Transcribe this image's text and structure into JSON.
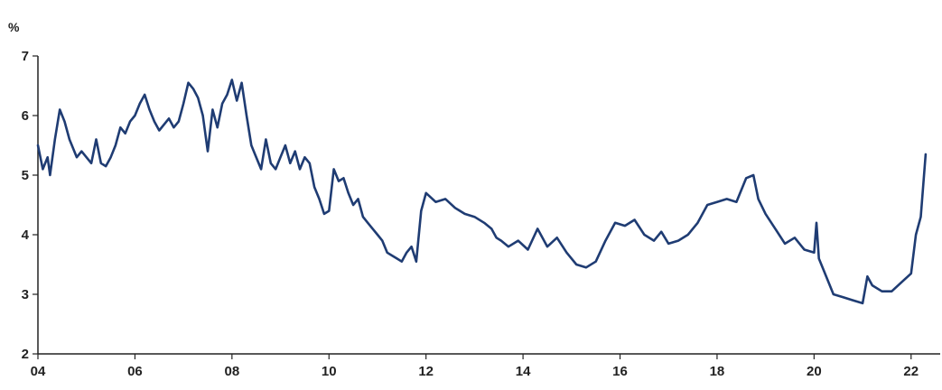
{
  "chart_data": {
    "type": "line",
    "unit_label": "%",
    "line_color": "#1f3c73",
    "x_range": [
      2004,
      2022.6
    ],
    "ylim": [
      2,
      7
    ],
    "grid": false,
    "x_ticks": [
      {
        "value": 2004,
        "label": "04"
      },
      {
        "value": 2006,
        "label": "06"
      },
      {
        "value": 2008,
        "label": "08"
      },
      {
        "value": 2010,
        "label": "10"
      },
      {
        "value": 2012,
        "label": "12"
      },
      {
        "value": 2014,
        "label": "14"
      },
      {
        "value": 2016,
        "label": "16"
      },
      {
        "value": 2018,
        "label": "18"
      },
      {
        "value": 2020,
        "label": "20"
      },
      {
        "value": 2022,
        "label": "22"
      }
    ],
    "y_ticks": [
      {
        "value": 2,
        "label": "2"
      },
      {
        "value": 3,
        "label": "3"
      },
      {
        "value": 4,
        "label": "4"
      },
      {
        "value": 5,
        "label": "5"
      },
      {
        "value": 6,
        "label": "6"
      },
      {
        "value": 7,
        "label": "7"
      }
    ],
    "series": [
      {
        "x": [
          2004.0,
          2004.1,
          2004.2,
          2004.25,
          2004.35,
          2004.45,
          2004.55,
          2004.65,
          2004.8,
          2004.9,
          2005.0,
          2005.1,
          2005.2,
          2005.3,
          2005.4,
          2005.5,
          2005.6,
          2005.7,
          2005.8,
          2005.9,
          2006.0,
          2006.1,
          2006.2,
          2006.3,
          2006.4,
          2006.5,
          2006.6,
          2006.7,
          2006.8,
          2006.9,
          2007.0,
          2007.1,
          2007.2,
          2007.3,
          2007.4,
          2007.5,
          2007.6,
          2007.7,
          2007.8,
          2007.9,
          2008.0,
          2008.1,
          2008.2,
          2008.3,
          2008.4,
          2008.5,
          2008.6,
          2008.7,
          2008.8,
          2008.9,
          2009.0,
          2009.1,
          2009.2,
          2009.3,
          2009.4,
          2009.5,
          2009.6,
          2009.7,
          2009.8,
          2009.9,
          2010.0,
          2010.1,
          2010.2,
          2010.3,
          2010.4,
          2010.5,
          2010.6,
          2010.7,
          2010.8,
          2010.9,
          2011.0,
          2011.1,
          2011.2,
          2011.3,
          2011.4,
          2011.5,
          2011.6,
          2011.7,
          2011.8,
          2011.9,
          2012.0,
          2012.2,
          2012.4,
          2012.6,
          2012.8,
          2013.0,
          2013.2,
          2013.35,
          2013.45,
          2013.55,
          2013.7,
          2013.9,
          2014.1,
          2014.3,
          2014.5,
          2014.7,
          2014.9,
          2015.1,
          2015.3,
          2015.5,
          2015.7,
          2015.9,
          2016.1,
          2016.3,
          2016.5,
          2016.7,
          2016.85,
          2017.0,
          2017.2,
          2017.4,
          2017.6,
          2017.8,
          2018.0,
          2018.2,
          2018.4,
          2018.6,
          2018.75,
          2018.85,
          2019.0,
          2019.2,
          2019.4,
          2019.6,
          2019.8,
          2020.0,
          2020.05,
          2020.1,
          2020.2,
          2020.4,
          2020.6,
          2020.8,
          2021.0,
          2021.1,
          2021.2,
          2021.4,
          2021.6,
          2021.8,
          2022.0,
          2022.1,
          2022.2,
          2022.3
        ],
        "y": [
          5.5,
          5.1,
          5.3,
          5.0,
          5.6,
          6.1,
          5.9,
          5.6,
          5.3,
          5.4,
          5.3,
          5.2,
          5.6,
          5.2,
          5.15,
          5.3,
          5.5,
          5.8,
          5.7,
          5.9,
          6.0,
          6.2,
          6.35,
          6.1,
          5.9,
          5.75,
          5.85,
          5.95,
          5.8,
          5.9,
          6.2,
          6.55,
          6.45,
          6.3,
          6.0,
          5.4,
          6.1,
          5.8,
          6.2,
          6.35,
          6.6,
          6.25,
          6.55,
          6.0,
          5.5,
          5.3,
          5.1,
          5.6,
          5.2,
          5.1,
          5.3,
          5.5,
          5.2,
          5.4,
          5.1,
          5.3,
          5.2,
          4.8,
          4.6,
          4.35,
          4.4,
          5.1,
          4.9,
          4.95,
          4.7,
          4.5,
          4.6,
          4.3,
          4.2,
          4.1,
          4.0,
          3.9,
          3.7,
          3.65,
          3.6,
          3.55,
          3.7,
          3.8,
          3.55,
          4.4,
          4.7,
          4.55,
          4.6,
          4.45,
          4.35,
          4.3,
          4.2,
          4.1,
          3.95,
          3.9,
          3.8,
          3.9,
          3.75,
          4.1,
          3.8,
          3.95,
          3.7,
          3.5,
          3.45,
          3.55,
          3.9,
          4.2,
          4.15,
          4.25,
          4.0,
          3.9,
          4.05,
          3.85,
          3.9,
          4.0,
          4.2,
          4.5,
          4.55,
          4.6,
          4.55,
          4.95,
          5.0,
          4.6,
          4.35,
          4.1,
          3.85,
          3.95,
          3.75,
          3.7,
          4.2,
          3.6,
          3.4,
          3.0,
          2.95,
          2.9,
          2.85,
          3.3,
          3.15,
          3.05,
          3.05,
          3.2,
          3.35,
          4.0,
          4.3,
          5.35
        ]
      }
    ]
  }
}
